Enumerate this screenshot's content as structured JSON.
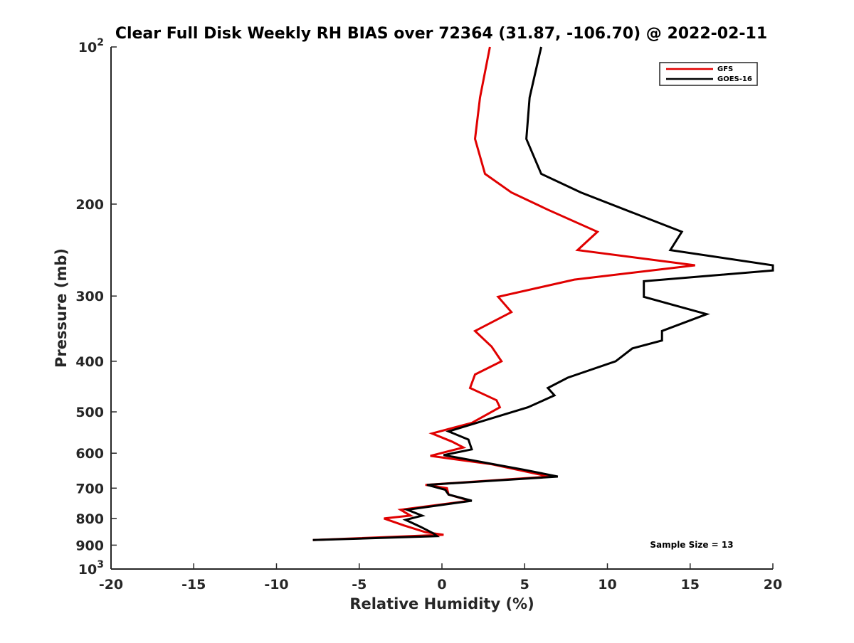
{
  "chart_data": {
    "type": "line",
    "title": "Clear Full Disk Weekly RH BIAS over 72364 (31.87, -106.70) @ 2022-02-11",
    "xlabel": "Relative Humidity (%)",
    "ylabel": "Pressure (mb)",
    "xlim": [
      -20,
      20
    ],
    "ylim": [
      100,
      1000
    ],
    "y_scale": "log",
    "y_reversed": true,
    "grid": false,
    "legend_position": "top-right",
    "x_ticks": [
      -20,
      -15,
      -10,
      -5,
      0,
      5,
      10,
      15,
      20
    ],
    "x_tick_labels": [
      "-20",
      "-15",
      "-10",
      "-5",
      "0",
      "5",
      "10",
      "15",
      "20"
    ],
    "y_ticks": [
      100,
      200,
      300,
      400,
      500,
      600,
      700,
      800,
      900,
      1000
    ],
    "y_tick_labels": [
      {
        "base": "10",
        "exp": "2"
      },
      {
        "base": "200",
        "exp": ""
      },
      {
        "base": "300",
        "exp": ""
      },
      {
        "base": "400",
        "exp": ""
      },
      {
        "base": "500",
        "exp": ""
      },
      {
        "base": "600",
        "exp": ""
      },
      {
        "base": "700",
        "exp": ""
      },
      {
        "base": "800",
        "exp": ""
      },
      {
        "base": "900",
        "exp": ""
      },
      {
        "base": "10",
        "exp": "3"
      }
    ],
    "annotation": "Sample Size = 13",
    "series": [
      {
        "name": "GFS",
        "color": "#e00000",
        "points": [
          [
            2.9,
            100
          ],
          [
            2.3,
            125
          ],
          [
            2.0,
            150
          ],
          [
            2.6,
            175
          ],
          [
            4.2,
            190
          ],
          [
            6.4,
            205
          ],
          [
            9.4,
            226
          ],
          [
            8.2,
            245
          ],
          [
            15.3,
            262
          ],
          [
            8.0,
            279
          ],
          [
            3.4,
            301
          ],
          [
            4.2,
            322
          ],
          [
            2.0,
            350
          ],
          [
            3.0,
            375
          ],
          [
            3.6,
            400
          ],
          [
            2.0,
            424
          ],
          [
            1.7,
            450
          ],
          [
            3.3,
            475
          ],
          [
            3.5,
            490
          ],
          [
            1.8,
            525
          ],
          [
            -0.6,
            550
          ],
          [
            0.6,
            570
          ],
          [
            1.3,
            585
          ],
          [
            -0.7,
            607
          ],
          [
            3.0,
            630
          ],
          [
            6.5,
            665
          ],
          [
            -1.0,
            690
          ],
          [
            0.3,
            700
          ],
          [
            0.4,
            720
          ],
          [
            1.7,
            740
          ],
          [
            -2.5,
            770
          ],
          [
            -1.9,
            790
          ],
          [
            -3.5,
            800
          ],
          [
            -2.3,
            825
          ],
          [
            -1.0,
            850
          ],
          [
            0.1,
            860
          ],
          [
            -7.8,
            880
          ]
        ]
      },
      {
        "name": "GOES-16",
        "color": "#000000",
        "points": [
          [
            6.0,
            100
          ],
          [
            5.3,
            125
          ],
          [
            5.1,
            150
          ],
          [
            6.0,
            175
          ],
          [
            8.4,
            190
          ],
          [
            14.5,
            226
          ],
          [
            13.8,
            245
          ],
          [
            20.0,
            262
          ],
          [
            20.0,
            268
          ],
          [
            12.2,
            281
          ],
          [
            12.2,
            301
          ],
          [
            16.0,
            325
          ],
          [
            13.3,
            350
          ],
          [
            13.3,
            365
          ],
          [
            11.5,
            378
          ],
          [
            10.5,
            400
          ],
          [
            7.6,
            430
          ],
          [
            6.4,
            450
          ],
          [
            6.8,
            465
          ],
          [
            5.2,
            490
          ],
          [
            0.4,
            545
          ],
          [
            1.6,
            565
          ],
          [
            1.8,
            590
          ],
          [
            0.1,
            605
          ],
          [
            4.9,
            645
          ],
          [
            7.0,
            665
          ],
          [
            -0.9,
            690
          ],
          [
            0.2,
            705
          ],
          [
            0.4,
            720
          ],
          [
            1.8,
            740
          ],
          [
            -2.1,
            770
          ],
          [
            -1.2,
            790
          ],
          [
            -2.2,
            805
          ],
          [
            -1.3,
            830
          ],
          [
            -0.5,
            855
          ],
          [
            -0.3,
            865
          ],
          [
            -7.8,
            880
          ]
        ]
      }
    ]
  }
}
